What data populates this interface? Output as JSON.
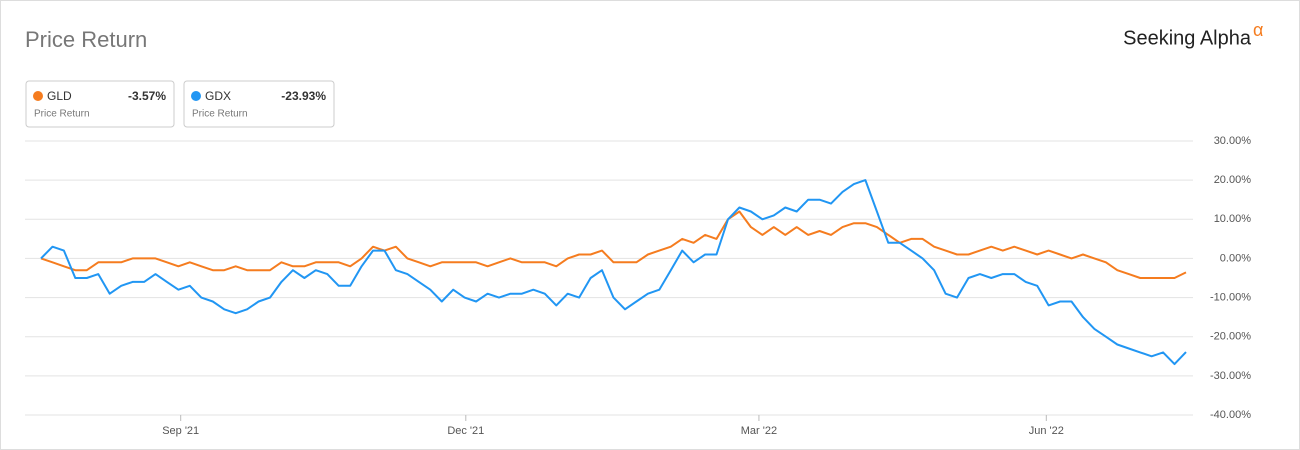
{
  "chart_data": {
    "type": "line",
    "title": "Price Return",
    "brand": "Seeking Alpha",
    "brand_mark": "α",
    "xlim": [
      0,
      100
    ],
    "xticks": [
      {
        "value": 12.2,
        "label": "Sep '21"
      },
      {
        "value": 37.1,
        "label": "Dec '21"
      },
      {
        "value": 62.7,
        "label": "Mar '22"
      },
      {
        "value": 87.8,
        "label": "Jun '22"
      }
    ],
    "ylim": [
      -40,
      30
    ],
    "yticks": [
      {
        "value": 30,
        "label": "30.00%"
      },
      {
        "value": 20,
        "label": "20.00%"
      },
      {
        "value": 10,
        "label": "10.00%"
      },
      {
        "value": 0,
        "label": "0.00%"
      },
      {
        "value": -10,
        "label": "-10.00%"
      },
      {
        "value": -20,
        "label": "-20.00%"
      },
      {
        "value": -30,
        "label": "-30.00%"
      },
      {
        "value": -40,
        "label": "-40.00%"
      }
    ],
    "grid": true,
    "x": [
      0,
      1,
      2,
      3,
      4,
      5,
      6,
      7,
      8,
      9,
      10,
      11,
      12,
      13,
      14,
      15,
      16,
      17,
      18,
      19,
      20,
      21,
      22,
      23,
      24,
      25,
      26,
      27,
      28,
      29,
      30,
      31,
      32,
      33,
      34,
      35,
      36,
      37,
      38,
      39,
      40,
      41,
      42,
      43,
      44,
      45,
      46,
      47,
      48,
      49,
      50,
      51,
      52,
      53,
      54,
      55,
      56,
      57,
      58,
      59,
      60,
      61,
      62,
      63,
      64,
      65,
      66,
      67,
      68,
      69,
      70,
      71,
      72,
      73,
      74,
      75,
      76,
      77,
      78,
      79,
      80,
      81,
      82,
      83,
      84,
      85,
      86,
      87,
      88,
      89,
      90,
      91,
      92,
      93,
      94,
      95,
      96,
      97,
      98,
      99,
      100
    ],
    "series": [
      {
        "name": "GLD",
        "color": "#f57c1f",
        "legend_value": "-3.57%",
        "legend_subtitle": "Price Return",
        "values": [
          0,
          -1,
          -2,
          -3,
          -3,
          -1,
          -1,
          -1,
          0,
          0,
          0,
          -1,
          -2,
          -1,
          -2,
          -3,
          -3,
          -2,
          -3,
          -3,
          -3,
          -1,
          -2,
          -2,
          -1,
          -1,
          -1,
          -2,
          0,
          3,
          2,
          3,
          0,
          -1,
          -2,
          -1,
          -1,
          -1,
          -1,
          -2,
          -1,
          0,
          -1,
          -1,
          -1,
          -2,
          0,
          1,
          1,
          2,
          -1,
          -1,
          -1,
          1,
          2,
          3,
          5,
          4,
          6,
          5,
          10,
          12,
          8,
          6,
          8,
          6,
          8,
          6,
          7,
          6,
          8,
          9,
          9,
          8,
          6,
          4,
          5,
          5,
          3,
          2,
          1,
          1,
          2,
          3,
          2,
          3,
          2,
          1,
          2,
          1,
          0,
          1,
          0,
          -1,
          -3,
          -4,
          -5,
          -5,
          -5,
          -5,
          -3.57
        ]
      },
      {
        "name": "GDX",
        "color": "#2196f3",
        "legend_value": "-23.93%",
        "legend_subtitle": "Price Return",
        "values": [
          0,
          3,
          2,
          -5,
          -5,
          -4,
          -9,
          -7,
          -6,
          -6,
          -4,
          -6,
          -8,
          -7,
          -10,
          -11,
          -13,
          -14,
          -13,
          -11,
          -10,
          -6,
          -3,
          -5,
          -3,
          -4,
          -7,
          -7,
          -2,
          2,
          2,
          -3,
          -4,
          -6,
          -8,
          -11,
          -8,
          -10,
          -11,
          -9,
          -10,
          -9,
          -9,
          -8,
          -9,
          -12,
          -9,
          -10,
          -5,
          -3,
          -10,
          -13,
          -11,
          -9,
          -8,
          -3,
          2,
          -1,
          1,
          1,
          10,
          13,
          12,
          10,
          11,
          13,
          12,
          15,
          15,
          14,
          17,
          19,
          20,
          12,
          4,
          4,
          2,
          0,
          -3,
          -9,
          -10,
          -5,
          -4,
          -5,
          -4,
          -4,
          -6,
          -7,
          -12,
          -11,
          -11,
          -15,
          -18,
          -20,
          -22,
          -23,
          -24,
          -25,
          -24,
          -27,
          -23.93
        ]
      }
    ]
  }
}
